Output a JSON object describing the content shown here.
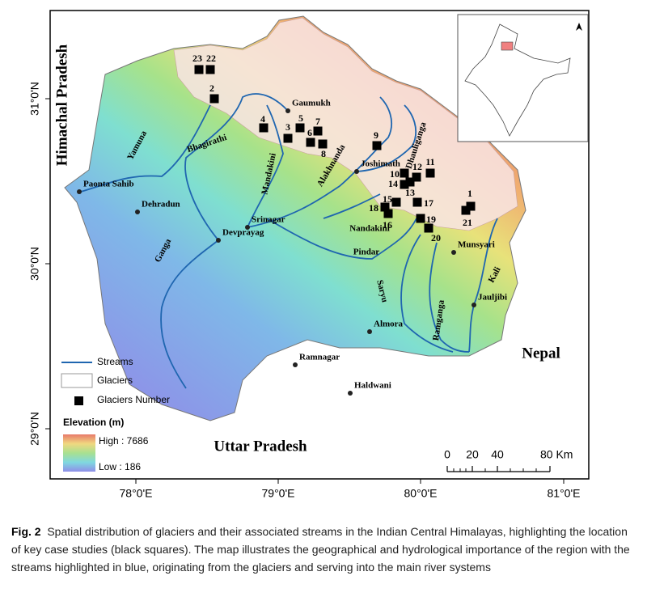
{
  "figure": {
    "map": {
      "regions": [
        "Himachal Pradesh",
        "Uttar Pradesh",
        "Nepal"
      ],
      "places": [
        "Gaumukh",
        "Joshimath",
        "Paonta Sahib",
        "Dehradun",
        "Srinagar",
        "Devprayag",
        "Munsyari",
        "Jauljibi",
        "Almora",
        "Ramnagar",
        "Haldwani"
      ],
      "rivers": [
        "Yamuna",
        "Bhagirathi",
        "Mandakini",
        "Alakhnanda",
        "Dhauliganga",
        "Nandakini",
        "Pindar",
        "Ganga",
        "Saryu",
        "Ramganga",
        "Kali"
      ],
      "glacier_numbers": [
        "1",
        "2",
        "3",
        "4",
        "5",
        "6",
        "7",
        "8",
        "9",
        "10",
        "11",
        "12",
        "13",
        "14",
        "15",
        "16",
        "17",
        "18",
        "19",
        "20",
        "21",
        "22",
        "23"
      ],
      "latitude_ticks": [
        "31°0'N",
        "30°0'N",
        "29°0'N"
      ],
      "longitude_ticks": [
        "78°0'E",
        "79°0'E",
        "80°0'E",
        "81°0'E"
      ]
    },
    "legend": {
      "items": [
        "Streams",
        "Glaciers",
        "Glaciers Number"
      ],
      "elevation_title": "Elevation (m)",
      "high": "High : 7686",
      "low": "Low : 186"
    },
    "scale_bar": {
      "labels": [
        "0",
        "20",
        "40",
        "80 Km"
      ]
    },
    "caption": {
      "label": "Fig. 2",
      "text": "Spatial distribution of glaciers and their associated streams in the Indian Central Himalayas, highlighting the location of key case studies (black squares). The map illustrates the geographical and hydrological importance of the region with the streams highlighted in blue, originating from the glaciers and serving into the main river systems"
    }
  }
}
